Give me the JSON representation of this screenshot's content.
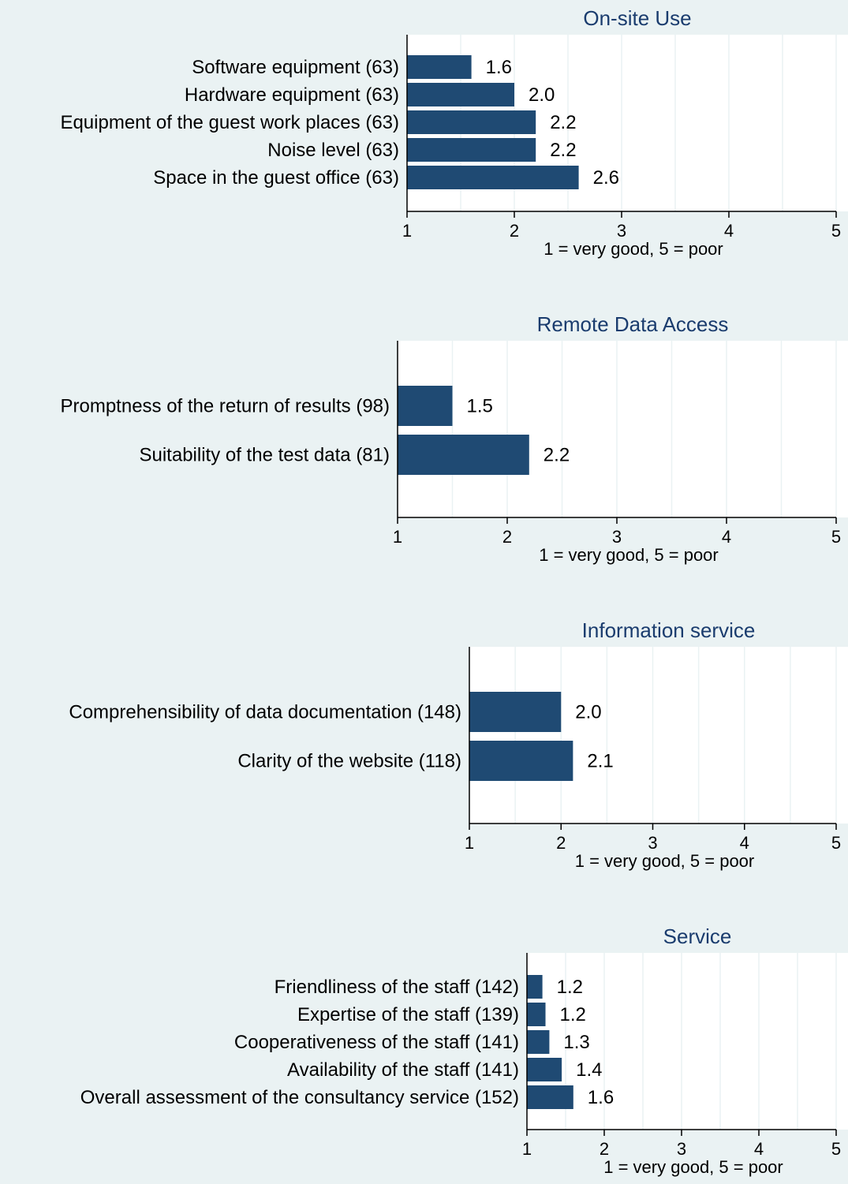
{
  "chart_data": [
    {
      "type": "bar",
      "orientation": "horizontal",
      "title": "On-site Use",
      "xlabel": "1 = very good, 5 = poor",
      "xlim": [
        1,
        5
      ],
      "xticks": [
        1,
        2,
        3,
        4,
        5
      ],
      "grid": true,
      "bar_color": "#1f4a73",
      "categories": [
        "Software equipment (63)",
        "Hardware equipment (63)",
        "Equipment of the guest work places (63)",
        "Noise level (63)",
        "Space in the guest office (63)"
      ],
      "values": [
        1.6,
        2.0,
        2.2,
        2.2,
        2.6
      ],
      "value_labels": [
        "1.6",
        "2.0",
        "2.2",
        "2.2",
        "2.6"
      ]
    },
    {
      "type": "bar",
      "orientation": "horizontal",
      "title": "Remote Data Access",
      "xlabel": "1 = very good, 5 = poor",
      "xlim": [
        1,
        5
      ],
      "xticks": [
        1,
        2,
        3,
        4,
        5
      ],
      "grid": true,
      "bar_color": "#1f4a73",
      "categories": [
        "Promptness of the return of results (98)",
        "Suitability of the test data (81)"
      ],
      "values": [
        1.5,
        2.2
      ],
      "value_labels": [
        "1.5",
        "2.2"
      ]
    },
    {
      "type": "bar",
      "orientation": "horizontal",
      "title": "Information service",
      "xlabel": "1 = very good, 5 = poor",
      "xlim": [
        1,
        5
      ],
      "xticks": [
        1,
        2,
        3,
        4,
        5
      ],
      "grid": true,
      "bar_color": "#1f4a73",
      "categories": [
        "Comprehensibility of data documentation (148)",
        "Clarity of the website (118)"
      ],
      "values": [
        2.0,
        2.13
      ],
      "value_labels": [
        "2.0",
        "2.1"
      ]
    },
    {
      "type": "bar",
      "orientation": "horizontal",
      "title": "Service",
      "xlabel": "1 = very good, 5 = poor",
      "xlim": [
        1,
        5
      ],
      "xticks": [
        1,
        2,
        3,
        4,
        5
      ],
      "grid": true,
      "bar_color": "#1f4a73",
      "categories": [
        "Friendliness of the staff (142)",
        "Expertise of the staff (139)",
        "Cooperativeness of the staff (141)",
        "Availability of the staff (141)",
        "Overall assessment of the consultancy service (152)"
      ],
      "values": [
        1.2,
        1.24,
        1.29,
        1.45,
        1.6
      ],
      "value_labels": [
        "1.2",
        "1.2",
        "1.3",
        "1.4",
        "1.6"
      ]
    }
  ]
}
